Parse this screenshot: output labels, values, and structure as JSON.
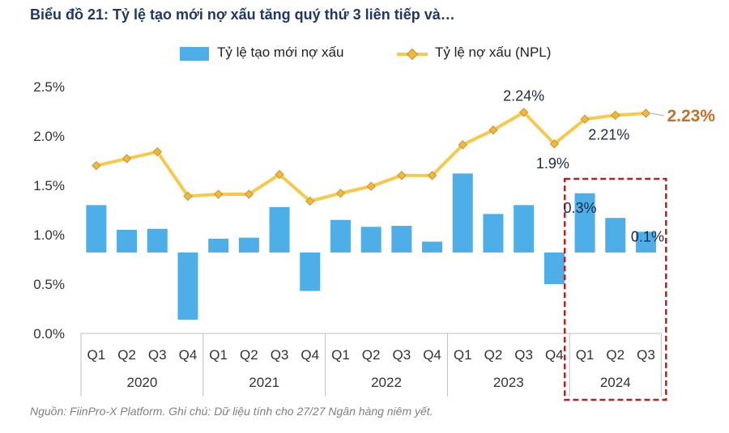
{
  "title": "Biểu đồ 21: Tỷ lệ tạo mới nợ xấu tăng quý thứ 3 liên tiếp và…",
  "footer": "Nguồn: FiinPro-X Platform. Ghi chú: Dữ liệu tính cho 27/27 Ngân hàng niêm yết.",
  "legend": {
    "bar_label": "Tỷ lệ tạo mới nợ xấu",
    "line_label": "Tỷ lệ nợ xấu (NPL)"
  },
  "colors": {
    "bar": "#4eaee7",
    "line": "#f7c948",
    "marker": "#f0b93e",
    "marker_border": "#c9912a",
    "title": "#1f3864",
    "highlight_box": "#b22222",
    "last_label": "#c0712a",
    "axis_text": "#333333"
  },
  "chart_data": {
    "type": "bar",
    "categories": [
      "Q1",
      "Q2",
      "Q3",
      "Q4",
      "Q1",
      "Q2",
      "Q3",
      "Q4",
      "Q1",
      "Q2",
      "Q3",
      "Q4",
      "Q1",
      "Q2",
      "Q3",
      "Q4",
      "Q1",
      "Q2",
      "Q3"
    ],
    "groups": [
      {
        "label": "2020",
        "count": 4
      },
      {
        "label": "2021",
        "count": 4
      },
      {
        "label": "2022",
        "count": 4
      },
      {
        "label": "2023",
        "count": 4
      },
      {
        "label": "2024",
        "count": 3
      }
    ],
    "yticks": [
      "0.0%",
      "0.5%",
      "1.0%",
      "1.5%",
      "2.0%",
      "2.5%"
    ],
    "ylim": [
      0,
      2.5
    ],
    "bar_baseline": 0.82,
    "series": [
      {
        "name": "Tỷ lệ tạo mới nợ xấu",
        "type": "bar",
        "values": [
          1.3,
          1.05,
          1.06,
          0.14,
          0.96,
          0.97,
          1.28,
          0.43,
          1.15,
          1.08,
          1.09,
          0.93,
          1.62,
          1.21,
          1.3,
          0.5,
          1.42,
          1.17,
          1.03
        ]
      },
      {
        "name": "Tỷ lệ nợ xấu (NPL)",
        "type": "line",
        "values": [
          1.7,
          1.77,
          1.84,
          1.39,
          1.41,
          1.41,
          1.61,
          1.34,
          1.42,
          1.49,
          1.6,
          1.6,
          1.91,
          2.06,
          2.24,
          1.92,
          2.17,
          2.21,
          2.23
        ]
      }
    ],
    "data_labels": [
      {
        "text": "2.24%",
        "series": 1,
        "index": 14
      },
      {
        "text": "1.9%",
        "series": 1,
        "index": 15
      },
      {
        "text": "2.21%",
        "series": 1,
        "index": 17
      },
      {
        "text": "2.23%",
        "series": 1,
        "index": 18
      },
      {
        "text": "0.3%",
        "series": 0,
        "index": 16
      },
      {
        "text": "0.1%",
        "series": 0,
        "index": 18
      }
    ],
    "grid": false,
    "legend_position": "top-center",
    "highlight": {
      "from_index": 16,
      "to_index": 18
    }
  }
}
